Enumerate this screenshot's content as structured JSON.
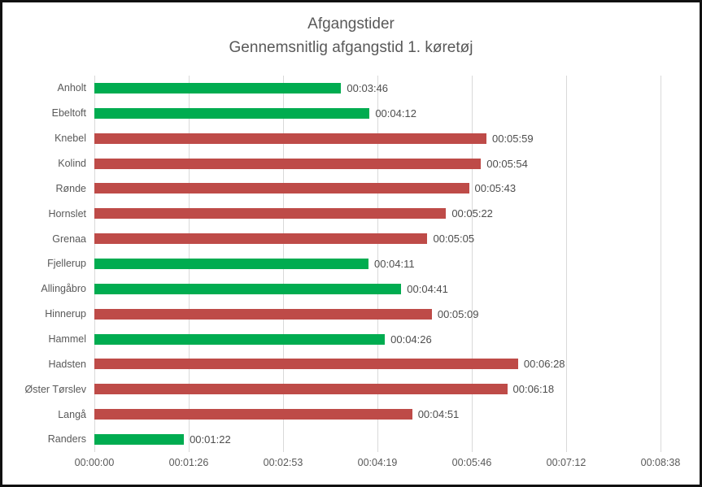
{
  "chart_data": {
    "type": "bar",
    "orientation": "horizontal",
    "title": "Afgangstider",
    "subtitle": "Gennemsnitlig afgangstid 1. køretøj",
    "categories": [
      "Anholt",
      "Ebeltoft",
      "Knebel",
      "Kolind",
      "Rønde",
      "Hornslet",
      "Grenaa",
      "Fjellerup",
      "Allingåbro",
      "Hinnerup",
      "Hammel",
      "Hadsten",
      "Øster Tørslev",
      "Langå",
      "Randers"
    ],
    "value_labels": [
      "00:03:46",
      "00:04:12",
      "00:05:59",
      "00:05:54",
      "00:05:43",
      "00:05:22",
      "00:05:05",
      "00:04:11",
      "00:04:41",
      "00:05:09",
      "00:04:26",
      "00:06:28",
      "00:06:18",
      "00:04:51",
      "00:01:22"
    ],
    "values_seconds": [
      226,
      252,
      359,
      354,
      343,
      322,
      305,
      251,
      281,
      309,
      266,
      388,
      378,
      291,
      82
    ],
    "bar_color_keys": [
      "green",
      "green",
      "red",
      "red",
      "red",
      "red",
      "red",
      "green",
      "green",
      "red",
      "green",
      "red",
      "red",
      "red",
      "green"
    ],
    "colors": {
      "green": "#00ac50",
      "red": "#be4b48"
    },
    "x_ticks": [
      "00:00:00",
      "00:01:26",
      "00:02:53",
      "00:04:19",
      "00:05:46",
      "00:07:12",
      "00:08:38"
    ],
    "x_axis_max_seconds": 518.4,
    "x_tick_interval_seconds": 86.4,
    "grid": true,
    "gridline_color": "#d9d9d9",
    "text_color": "#595959",
    "xlabel": "",
    "ylabel": ""
  }
}
